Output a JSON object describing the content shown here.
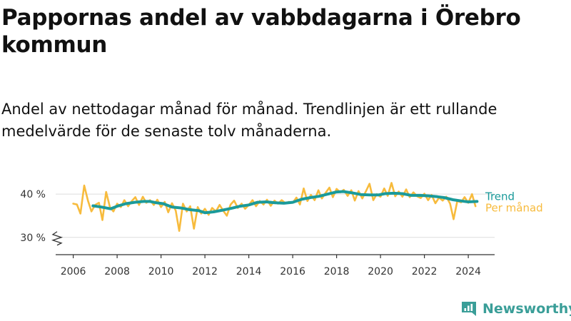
{
  "title": "Pappornas andel av vabbdagarna i Örebro kommun",
  "subtitle": "Andel av nettodagar månad för månad. Trendlinjen är ett rullande medelvärde för de senaste tolv månaderna.",
  "brand": {
    "name": "Newsworthy",
    "icon": "newsworthy-logo-icon",
    "color": "#3a9e98"
  },
  "chart_data": {
    "type": "line",
    "xlim": [
      2005.2,
      2025.2
    ],
    "ylim": [
      26,
      42
    ],
    "axis_break": true,
    "y_ticks": [
      {
        "value": 30,
        "label": "30 %"
      },
      {
        "value": 40,
        "label": "40 %"
      }
    ],
    "x_ticks": [
      2006,
      2008,
      2010,
      2012,
      2014,
      2016,
      2018,
      2020,
      2022,
      2024
    ],
    "grid": "horizontal",
    "legend": "right, at line ends",
    "series": [
      {
        "name": "Trend",
        "color": "#1a9a9a",
        "points": [
          [
            2006.9,
            37.3
          ],
          [
            2007.3,
            37.0
          ],
          [
            2007.7,
            36.6
          ],
          [
            2008.0,
            37.2
          ],
          [
            2008.4,
            37.8
          ],
          [
            2008.8,
            38.1
          ],
          [
            2009.2,
            38.3
          ],
          [
            2009.5,
            38.3
          ],
          [
            2009.8,
            38.0
          ],
          [
            2010.1,
            37.8
          ],
          [
            2010.5,
            37.0
          ],
          [
            2010.9,
            36.8
          ],
          [
            2011.3,
            36.4
          ],
          [
            2011.7,
            36.2
          ],
          [
            2012.0,
            35.7
          ],
          [
            2012.4,
            35.9
          ],
          [
            2012.8,
            36.3
          ],
          [
            2013.2,
            36.7
          ],
          [
            2013.6,
            37.2
          ],
          [
            2014.0,
            37.5
          ],
          [
            2014.4,
            38.1
          ],
          [
            2014.8,
            38.2
          ],
          [
            2015.2,
            38.0
          ],
          [
            2015.6,
            37.9
          ],
          [
            2016.0,
            38.1
          ],
          [
            2016.4,
            38.8
          ],
          [
            2016.8,
            39.2
          ],
          [
            2017.2,
            39.5
          ],
          [
            2017.6,
            40.0
          ],
          [
            2018.0,
            40.5
          ],
          [
            2018.3,
            40.6
          ],
          [
            2018.7,
            40.3
          ],
          [
            2019.1,
            39.9
          ],
          [
            2019.5,
            39.8
          ],
          [
            2019.9,
            39.8
          ],
          [
            2020.2,
            40.1
          ],
          [
            2020.6,
            40.2
          ],
          [
            2021.0,
            40.1
          ],
          [
            2021.4,
            39.7
          ],
          [
            2021.8,
            39.7
          ],
          [
            2022.2,
            39.6
          ],
          [
            2022.6,
            39.4
          ],
          [
            2022.9,
            39.2
          ],
          [
            2023.3,
            38.7
          ],
          [
            2023.7,
            38.4
          ],
          [
            2024.0,
            38.2
          ],
          [
            2024.4,
            38.3
          ]
        ]
      },
      {
        "name": "Per månad",
        "color": "#f7bb3d",
        "points": [
          [
            2006.0,
            37.8
          ],
          [
            2006.17,
            37.6
          ],
          [
            2006.33,
            35.5
          ],
          [
            2006.5,
            42.0
          ],
          [
            2006.67,
            38.5
          ],
          [
            2006.83,
            36.0
          ],
          [
            2007.0,
            37.5
          ],
          [
            2007.17,
            38.0
          ],
          [
            2007.33,
            34.0
          ],
          [
            2007.5,
            40.5
          ],
          [
            2007.67,
            37.0
          ],
          [
            2007.83,
            36.0
          ],
          [
            2008.0,
            37.8
          ],
          [
            2008.17,
            37.0
          ],
          [
            2008.33,
            38.6
          ],
          [
            2008.5,
            37.2
          ],
          [
            2008.67,
            38.4
          ],
          [
            2008.83,
            39.3
          ],
          [
            2009.0,
            37.5
          ],
          [
            2009.17,
            39.4
          ],
          [
            2009.33,
            38.0
          ],
          [
            2009.5,
            38.6
          ],
          [
            2009.67,
            37.5
          ],
          [
            2009.83,
            38.7
          ],
          [
            2010.0,
            37.0
          ],
          [
            2010.17,
            38.2
          ],
          [
            2010.33,
            35.8
          ],
          [
            2010.5,
            37.9
          ],
          [
            2010.67,
            36.2
          ],
          [
            2010.83,
            31.5
          ],
          [
            2011.0,
            37.8
          ],
          [
            2011.17,
            36.0
          ],
          [
            2011.33,
            37.2
          ],
          [
            2011.5,
            32.0
          ],
          [
            2011.67,
            37.0
          ],
          [
            2011.83,
            35.5
          ],
          [
            2012.0,
            36.6
          ],
          [
            2012.17,
            35.2
          ],
          [
            2012.33,
            36.8
          ],
          [
            2012.5,
            36.0
          ],
          [
            2012.67,
            37.5
          ],
          [
            2012.83,
            36.2
          ],
          [
            2013.0,
            35.0
          ],
          [
            2013.17,
            37.6
          ],
          [
            2013.33,
            38.5
          ],
          [
            2013.5,
            36.8
          ],
          [
            2013.67,
            37.8
          ],
          [
            2013.83,
            36.6
          ],
          [
            2014.0,
            37.5
          ],
          [
            2014.17,
            38.6
          ],
          [
            2014.33,
            37.2
          ],
          [
            2014.5,
            38.4
          ],
          [
            2014.67,
            37.6
          ],
          [
            2014.83,
            38.7
          ],
          [
            2015.0,
            37.3
          ],
          [
            2015.17,
            38.5
          ],
          [
            2015.33,
            37.8
          ],
          [
            2015.5,
            38.6
          ],
          [
            2015.67,
            37.9
          ],
          [
            2015.83,
            38.2
          ],
          [
            2016.0,
            38.0
          ],
          [
            2016.17,
            39.2
          ],
          [
            2016.33,
            37.6
          ],
          [
            2016.5,
            41.3
          ],
          [
            2016.67,
            38.4
          ],
          [
            2016.83,
            39.8
          ],
          [
            2017.0,
            38.6
          ],
          [
            2017.17,
            40.9
          ],
          [
            2017.33,
            39.0
          ],
          [
            2017.5,
            40.3
          ],
          [
            2017.67,
            41.5
          ],
          [
            2017.83,
            39.3
          ],
          [
            2018.0,
            41.2
          ],
          [
            2018.17,
            40.4
          ],
          [
            2018.33,
            41.0
          ],
          [
            2018.5,
            39.6
          ],
          [
            2018.67,
            40.9
          ],
          [
            2018.83,
            38.5
          ],
          [
            2019.0,
            40.7
          ],
          [
            2019.17,
            39.0
          ],
          [
            2019.33,
            40.6
          ],
          [
            2019.5,
            42.4
          ],
          [
            2019.67,
            38.6
          ],
          [
            2019.83,
            40.0
          ],
          [
            2020.0,
            39.4
          ],
          [
            2020.17,
            41.3
          ],
          [
            2020.33,
            39.6
          ],
          [
            2020.5,
            42.6
          ],
          [
            2020.67,
            39.5
          ],
          [
            2020.83,
            40.6
          ],
          [
            2021.0,
            39.4
          ],
          [
            2021.17,
            41.1
          ],
          [
            2021.33,
            39.3
          ],
          [
            2021.5,
            40.4
          ],
          [
            2021.67,
            39.5
          ],
          [
            2021.83,
            39.1
          ],
          [
            2022.0,
            40.1
          ],
          [
            2022.17,
            38.6
          ],
          [
            2022.33,
            39.8
          ],
          [
            2022.5,
            37.9
          ],
          [
            2022.67,
            39.2
          ],
          [
            2022.83,
            38.5
          ],
          [
            2023.0,
            39.4
          ],
          [
            2023.17,
            37.8
          ],
          [
            2023.33,
            34.2
          ],
          [
            2023.5,
            38.4
          ],
          [
            2023.67,
            38.1
          ],
          [
            2023.83,
            39.3
          ],
          [
            2024.0,
            38.0
          ],
          [
            2024.17,
            40.0
          ],
          [
            2024.33,
            37.2
          ]
        ]
      }
    ]
  }
}
